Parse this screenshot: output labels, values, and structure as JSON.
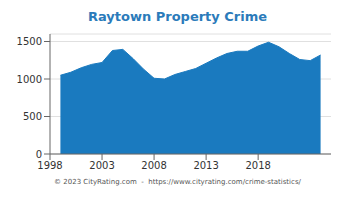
{
  "chart_data": {
    "type": "area",
    "title": "Raytown Property Crime",
    "x": [
      1999,
      2000,
      2001,
      2002,
      2003,
      2004,
      2005,
      2006,
      2007,
      2008,
      2009,
      2010,
      2011,
      2012,
      2013,
      2014,
      2015,
      2016,
      2017,
      2018,
      2019,
      2020,
      2021,
      2022,
      2023,
      2024
    ],
    "values": [
      1050,
      1090,
      1150,
      1195,
      1220,
      1380,
      1395,
      1270,
      1130,
      1010,
      1000,
      1060,
      1100,
      1140,
      1210,
      1280,
      1340,
      1370,
      1370,
      1440,
      1490,
      1430,
      1340,
      1260,
      1245,
      1320
    ],
    "color": "#1a7abf",
    "xlim": [
      1998,
      2025
    ],
    "xticks": [
      1998,
      2003,
      2008,
      2013,
      2018
    ],
    "ylim": [
      0,
      1600
    ],
    "yticks": [
      0,
      500,
      1000,
      1500
    ],
    "grid": true,
    "annotations": [
      "© 2023 CityRating.com  -  https://www.cityrating.com/crime-statistics/"
    ]
  }
}
